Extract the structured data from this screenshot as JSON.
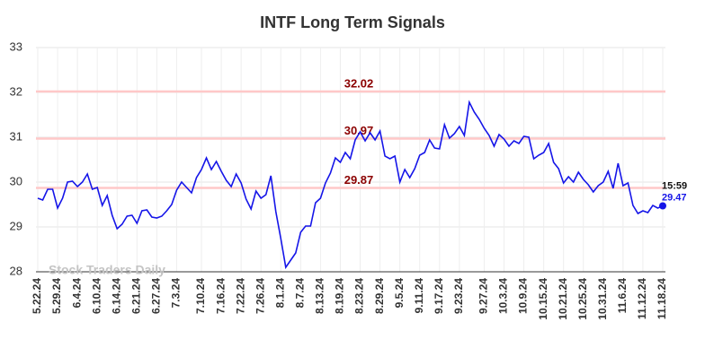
{
  "chart_data": {
    "type": "line",
    "title": "INTF Long Term Signals",
    "watermark": "Stock Traders Daily",
    "categories": [
      "5.22.24",
      null,
      null,
      null,
      "5.29.24",
      null,
      null,
      null,
      "6.4.24",
      null,
      null,
      null,
      "6.10.24",
      null,
      null,
      null,
      "6.14.24",
      null,
      null,
      null,
      "6.21.24",
      null,
      null,
      null,
      "6.27.24",
      null,
      null,
      null,
      "7.3.24",
      null,
      null,
      null,
      null,
      "7.10.24",
      null,
      null,
      null,
      "7.16.24",
      null,
      null,
      null,
      "7.22.24",
      null,
      null,
      null,
      "7.26.24",
      null,
      null,
      null,
      "8.1.24",
      null,
      null,
      null,
      "8.7.24",
      null,
      null,
      null,
      "8.13.24",
      null,
      null,
      null,
      "8.19.24",
      null,
      null,
      null,
      "8.23.24",
      null,
      null,
      null,
      "8.29.24",
      null,
      null,
      null,
      "9.5.24",
      null,
      null,
      null,
      "9.11.24",
      null,
      null,
      null,
      "9.17.24",
      null,
      null,
      null,
      "9.23.24",
      null,
      null,
      null,
      null,
      "9.27.24",
      null,
      null,
      null,
      "10.3.24",
      null,
      null,
      null,
      "10.9.24",
      null,
      null,
      null,
      "10.15.24",
      null,
      null,
      null,
      "10.21.24",
      null,
      null,
      null,
      "10.25.24",
      null,
      null,
      null,
      "10.31.24",
      null,
      null,
      null,
      "11.6.24",
      null,
      null,
      null,
      "11.12.24",
      null,
      null,
      null,
      "11.18.24"
    ],
    "values": [
      29.64,
      29.6,
      29.84,
      29.84,
      29.42,
      29.64,
      30.0,
      30.02,
      29.9,
      30.0,
      30.18,
      29.84,
      29.88,
      29.48,
      29.7,
      29.26,
      28.96,
      29.06,
      29.24,
      29.26,
      29.08,
      29.36,
      29.38,
      29.22,
      29.2,
      29.24,
      29.36,
      29.5,
      29.82,
      30.0,
      29.88,
      29.76,
      30.1,
      30.28,
      30.54,
      30.28,
      30.46,
      30.24,
      30.04,
      29.9,
      30.18,
      29.98,
      29.62,
      29.4,
      29.8,
      29.64,
      29.72,
      30.14,
      29.34,
      28.74,
      28.1,
      28.26,
      28.42,
      28.88,
      29.02,
      29.02,
      29.54,
      29.64,
      29.98,
      30.2,
      30.54,
      30.44,
      30.66,
      30.52,
      30.94,
      31.12,
      30.92,
      31.1,
      30.94,
      31.14,
      30.58,
      30.52,
      30.58,
      30.0,
      30.28,
      30.1,
      30.3,
      30.6,
      30.66,
      30.94,
      30.76,
      30.74,
      31.28,
      30.98,
      31.08,
      31.24,
      31.04,
      31.78,
      31.56,
      31.4,
      31.2,
      31.04,
      30.8,
      31.06,
      30.96,
      30.8,
      30.92,
      30.86,
      31.02,
      31.0,
      30.52,
      30.6,
      30.66,
      30.86,
      30.44,
      30.3,
      29.98,
      30.12,
      30.0,
      30.22,
      30.06,
      29.94,
      29.78,
      29.92,
      30.0,
      30.24,
      29.86,
      30.42,
      29.92,
      29.98,
      29.48,
      29.3,
      29.36,
      29.32,
      29.48,
      29.42,
      29.47
    ],
    "color": "#1515e8",
    "signals": [
      32.02,
      30.97,
      29.87
    ],
    "signal_color": "#ffc8c8",
    "signal_label_color": "#8b0000",
    "last_time": "15:59",
    "ylim": [
      28,
      33
    ],
    "yticks": [
      28,
      29,
      30,
      31,
      32,
      33
    ],
    "grid": true
  }
}
